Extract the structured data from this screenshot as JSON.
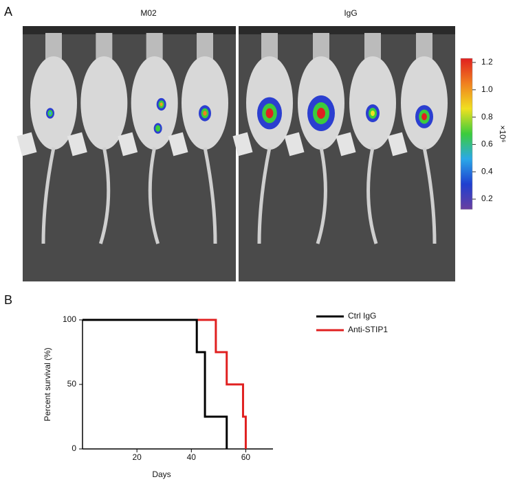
{
  "chart_data": [
    {
      "type": "image",
      "panel": "A",
      "panel_titles": [
        "M02",
        "IgG"
      ],
      "colorbar_label": "×10⁶",
      "ylim": [
        0.125,
        1.23
      ],
      "yticks": [
        0.2,
        0.4,
        0.6,
        0.8,
        {
          "value": 1.0,
          "label": "1.0"
        },
        1.2
      ],
      "colors": [
        "#6a3fa0",
        "#1f3fd0",
        "#2aa8e8",
        "#3ccc3c",
        "#f0e020",
        "#f08020",
        "#e02020"
      ]
    },
    {
      "type": "step",
      "panel": "B",
      "xlabel": "Days",
      "ylabel": "Percent survival (%)",
      "xlim": [
        0,
        70
      ],
      "ylim": [
        0,
        100
      ],
      "xticks": [
        20,
        40,
        60
      ],
      "yticks": [
        0,
        50,
        100
      ],
      "series": [
        {
          "name": "Ctrl IgG",
          "color": "#000000",
          "x": [
            0,
            42,
            42,
            45,
            45,
            53,
            53
          ],
          "values": [
            100,
            100,
            75,
            75,
            25,
            25,
            0
          ]
        },
        {
          "name": "Anti-STIP1",
          "color": "#e02020",
          "x": [
            0,
            49,
            49,
            53,
            53,
            59,
            59,
            60,
            60
          ],
          "values": [
            100,
            100,
            75,
            75,
            50,
            50,
            25,
            25,
            0
          ]
        }
      ]
    }
  ]
}
